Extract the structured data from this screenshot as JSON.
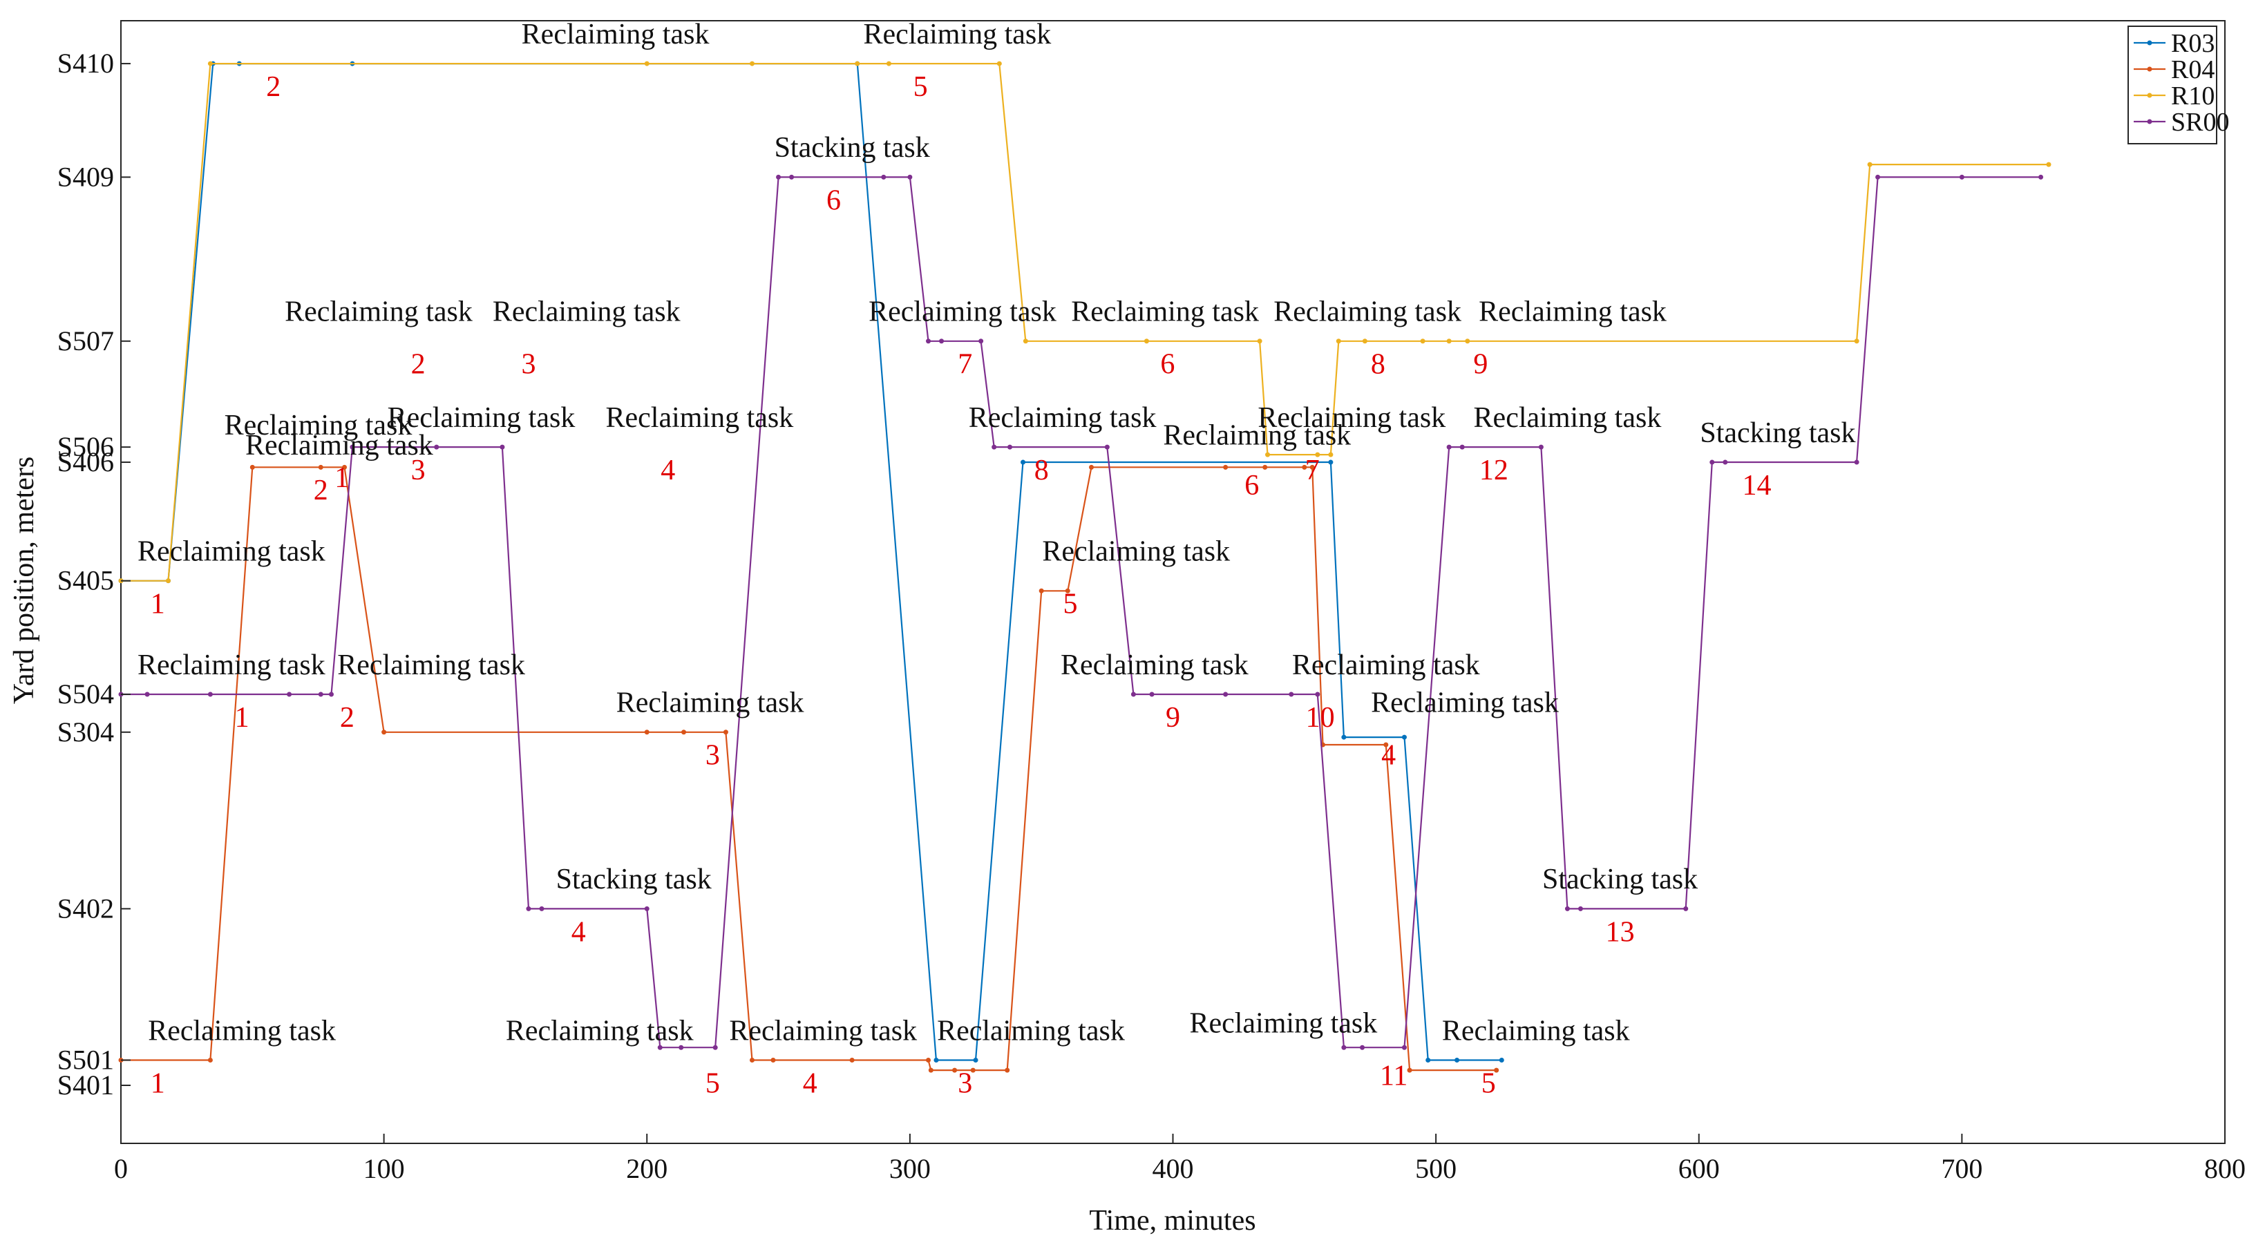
{
  "chart_data": {
    "type": "line",
    "xlabel": "Time, minutes",
    "ylabel": "Yard position, meters",
    "xlim": [
      0,
      800
    ],
    "xticks": [
      0,
      100,
      200,
      300,
      400,
      500,
      600,
      700,
      800
    ],
    "yticks": [
      {
        "label": "S401",
        "value": -11
      },
      {
        "label": "S501",
        "value": -10
      },
      {
        "label": "S402",
        "value": -4
      },
      {
        "label": "S304",
        "value": 3
      },
      {
        "label": "S504",
        "value": 4.5
      },
      {
        "label": "S405",
        "value": 9
      },
      {
        "label": "S406",
        "value": 13.7
      },
      {
        "label": "S506",
        "value": 14.3
      },
      {
        "label": "S507",
        "value": 18.5
      },
      {
        "label": "S409",
        "value": 25
      },
      {
        "label": "S410",
        "value": 29.5
      }
    ],
    "ylim": [
      -13.3,
      31.2
    ],
    "legend_position": "top-right",
    "series": [
      {
        "name": "R03",
        "color": "#0072BD",
        "points": [
          [
            0,
            9
          ],
          [
            18,
            9
          ],
          [
            35,
            29.5
          ],
          [
            45,
            29.5
          ],
          [
            88,
            29.5
          ],
          [
            280,
            29.5
          ],
          [
            310,
            -10
          ],
          [
            325,
            -10
          ],
          [
            343,
            13.7
          ],
          [
            460,
            13.7
          ],
          [
            465,
            2.8
          ],
          [
            488,
            2.8
          ],
          [
            497,
            -10
          ],
          [
            508,
            -10
          ],
          [
            525,
            -10
          ]
        ]
      },
      {
        "name": "R04",
        "color": "#D95319",
        "points": [
          [
            0,
            -10
          ],
          [
            34,
            -10
          ],
          [
            50,
            13.5
          ],
          [
            76,
            13.5
          ],
          [
            85,
            13.5
          ],
          [
            100,
            3
          ],
          [
            200,
            3
          ],
          [
            214,
            3
          ],
          [
            230,
            3
          ],
          [
            240,
            -10
          ],
          [
            248,
            -10
          ],
          [
            278,
            -10
          ],
          [
            307,
            -10
          ],
          [
            308,
            -10.4
          ],
          [
            317,
            -10.4
          ],
          [
            324,
            -10.4
          ],
          [
            337,
            -10.4
          ],
          [
            350,
            8.6
          ],
          [
            360,
            8.6
          ],
          [
            369,
            13.5
          ],
          [
            420,
            13.5
          ],
          [
            435,
            13.5
          ],
          [
            450,
            13.5
          ],
          [
            453,
            13.5
          ],
          [
            457,
            2.5
          ],
          [
            481,
            2.5
          ],
          [
            490,
            -10.4
          ],
          [
            523,
            -10.4
          ]
        ]
      },
      {
        "name": "R10",
        "color": "#EDB120",
        "points": [
          [
            0,
            9
          ],
          [
            18,
            9
          ],
          [
            34,
            29.5
          ],
          [
            200,
            29.5
          ],
          [
            240,
            29.5
          ],
          [
            280,
            29.5
          ],
          [
            292,
            29.5
          ],
          [
            334,
            29.5
          ],
          [
            344,
            18.5
          ],
          [
            390,
            18.5
          ],
          [
            433,
            18.5
          ],
          [
            436,
            14
          ],
          [
            455,
            14
          ],
          [
            460,
            14
          ],
          [
            463,
            18.5
          ],
          [
            473,
            18.5
          ],
          [
            495,
            18.5
          ],
          [
            505,
            18.5
          ],
          [
            512,
            18.5
          ],
          [
            660,
            18.5
          ],
          [
            665,
            25.5
          ],
          [
            733,
            25.5
          ]
        ]
      },
      {
        "name": "SR00",
        "color": "#7E2F8E",
        "points": [
          [
            0,
            4.5
          ],
          [
            10,
            4.5
          ],
          [
            34,
            4.5
          ],
          [
            64,
            4.5
          ],
          [
            76,
            4.5
          ],
          [
            80,
            4.5
          ],
          [
            88,
            14.3
          ],
          [
            120,
            14.3
          ],
          [
            145,
            14.3
          ],
          [
            155,
            -4
          ],
          [
            160,
            -4
          ],
          [
            200,
            -4
          ],
          [
            205,
            -9.5
          ],
          [
            213,
            -9.5
          ],
          [
            226,
            -9.5
          ],
          [
            250,
            25
          ],
          [
            255,
            25
          ],
          [
            290,
            25
          ],
          [
            300,
            25
          ],
          [
            307,
            18.5
          ],
          [
            312,
            18.5
          ],
          [
            327,
            18.5
          ],
          [
            332,
            14.3
          ],
          [
            338,
            14.3
          ],
          [
            375,
            14.3
          ],
          [
            385,
            4.5
          ],
          [
            392,
            4.5
          ],
          [
            420,
            4.5
          ],
          [
            445,
            4.5
          ],
          [
            455,
            4.5
          ],
          [
            465,
            -9.5
          ],
          [
            472,
            -9.5
          ],
          [
            488,
            -9.5
          ],
          [
            505,
            14.3
          ],
          [
            510,
            14.3
          ],
          [
            540,
            14.3
          ],
          [
            550,
            -4
          ],
          [
            555,
            -4
          ],
          [
            595,
            -4
          ],
          [
            605,
            13.7
          ],
          [
            610,
            13.7
          ],
          [
            660,
            13.7
          ],
          [
            668,
            25
          ],
          [
            700,
            25
          ],
          [
            730,
            25
          ]
        ]
      }
    ],
    "annotations": [
      {
        "text": "Reclaiming task",
        "x": 188,
        "y": 30.3,
        "num": "2",
        "nx": 58,
        "ny": 28.6
      },
      {
        "text": "Reclaiming task",
        "x": 318,
        "y": 30.3,
        "num": "5",
        "nx": 304,
        "ny": 28.6
      },
      {
        "text": "Stacking task",
        "x": 278,
        "y": 25.8,
        "num": "6",
        "nx": 271,
        "ny": 24.1
      },
      {
        "text": "Reclaiming task",
        "x": 98,
        "y": 19.3,
        "num": "2",
        "nx": 113,
        "ny": 17.6
      },
      {
        "text": "Reclaiming task",
        "x": 177,
        "y": 19.3,
        "num": "3",
        "nx": 155,
        "ny": 17.6
      },
      {
        "text": "Reclaiming task",
        "x": 320,
        "y": 19.3,
        "num": "7",
        "nx": 321,
        "ny": 17.6
      },
      {
        "text": "Reclaiming task",
        "x": 397,
        "y": 19.3,
        "num": "6",
        "nx": 398,
        "ny": 17.6
      },
      {
        "text": "Reclaiming task",
        "x": 474,
        "y": 19.3,
        "num": "8",
        "nx": 478,
        "ny": 17.6
      },
      {
        "text": "Reclaiming task",
        "x": 552,
        "y": 19.3,
        "num": "9",
        "nx": 517,
        "ny": 17.6
      },
      {
        "text": "Reclaiming task",
        "x": 75,
        "y": 14.8,
        "num": "1",
        "nx": 84,
        "ny": 13.1
      },
      {
        "text": "Reclaiming task",
        "x": 83,
        "y": 14.0,
        "num": "2",
        "nx": 76,
        "ny": 12.6
      },
      {
        "text": "Reclaiming task",
        "x": 137,
        "y": 15.1,
        "num": "3",
        "nx": 113,
        "ny": 13.4
      },
      {
        "text": "Reclaiming task",
        "x": 220,
        "y": 15.1,
        "num": "4",
        "nx": 208,
        "ny": 13.4
      },
      {
        "text": "Reclaiming task",
        "x": 358,
        "y": 15.1,
        "num": "8",
        "nx": 350,
        "ny": 13.4
      },
      {
        "text": "Reclaiming task",
        "x": 432,
        "y": 14.4,
        "num": "6",
        "nx": 430,
        "ny": 12.8
      },
      {
        "text": "Reclaiming task",
        "x": 468,
        "y": 15.1,
        "num": "7",
        "nx": 453,
        "ny": 13.4
      },
      {
        "text": "Reclaiming task",
        "x": 550,
        "y": 15.1,
        "num": "12",
        "nx": 522,
        "ny": 13.4
      },
      {
        "text": "Stacking task",
        "x": 630,
        "y": 14.5,
        "num": "14",
        "nx": 622,
        "ny": 12.8
      },
      {
        "text": "Reclaiming task",
        "x": 42,
        "y": 9.8,
        "num": "1",
        "nx": 14,
        "ny": 8.1
      },
      {
        "text": "Reclaiming task",
        "x": 386,
        "y": 9.8,
        "num": "5",
        "nx": 361,
        "ny": 8.1
      },
      {
        "text": "Reclaiming task",
        "x": 42,
        "y": 5.3,
        "num": "1",
        "nx": 46,
        "ny": 3.6
      },
      {
        "text": "Reclaiming task",
        "x": 118,
        "y": 5.3,
        "num": "2",
        "nx": 86,
        "ny": 3.6
      },
      {
        "text": "Reclaiming task",
        "x": 224,
        "y": 3.8,
        "num": "3",
        "nx": 225,
        "ny": 2.1
      },
      {
        "text": "Reclaiming task",
        "x": 393,
        "y": 5.3,
        "num": "9",
        "nx": 400,
        "ny": 3.6
      },
      {
        "text": "Reclaiming task",
        "x": 481,
        "y": 5.3,
        "num": "10",
        "nx": 456,
        "ny": 3.6
      },
      {
        "text": "Reclaiming task",
        "x": 511,
        "y": 3.8,
        "num": "4",
        "nx": 482,
        "ny": 2.1
      },
      {
        "text": "Stacking task",
        "x": 195,
        "y": -3.2,
        "num": "4",
        "nx": 174,
        "ny": -4.9
      },
      {
        "text": "Stacking task",
        "x": 570,
        "y": -3.2,
        "num": "13",
        "nx": 570,
        "ny": -4.9
      },
      {
        "text": "Reclaiming task",
        "x": 46,
        "y": -9.2,
        "num": "1",
        "nx": 14,
        "ny": -10.9
      },
      {
        "text": "Reclaiming task",
        "x": 182,
        "y": -9.2,
        "num": "5",
        "nx": 225,
        "ny": -10.9
      },
      {
        "text": "Reclaiming task",
        "x": 267,
        "y": -9.2,
        "num": "4",
        "nx": 262,
        "ny": -10.9
      },
      {
        "text": "Reclaiming task",
        "x": 346,
        "y": -9.2,
        "num": "3",
        "nx": 321,
        "ny": -10.9
      },
      {
        "text": "Reclaiming task",
        "x": 442,
        "y": -8.9,
        "num": "11",
        "nx": 484,
        "ny": -10.6
      },
      {
        "text": "Reclaiming task",
        "x": 538,
        "y": -9.2,
        "num": "5",
        "nx": 520,
        "ny": -10.9
      }
    ]
  }
}
